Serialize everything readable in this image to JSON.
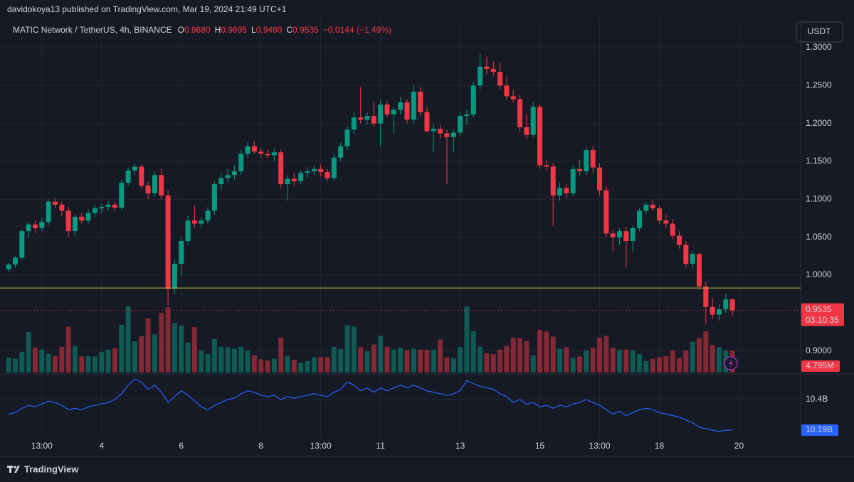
{
  "publisher": "davidokoya13 published on TradingView.com, Mar 19, 2024 21:49 UTC+1",
  "currency_button": "USDT",
  "footer": {
    "brand": "TradingView"
  },
  "chart_data": [
    {
      "type": "candlestick",
      "title": "MATIC Network / TetherUS, 4h, BINANCE",
      "legend_ohlc": [
        {
          "key": "O",
          "value": "0.9680"
        },
        {
          "key": "H",
          "value": "0.9695"
        },
        {
          "key": "L",
          "value": "0.9460"
        },
        {
          "key": "C",
          "value": "0.9535"
        }
      ],
      "change": "−0.0144 (−1.49%)",
      "countdown": "03:10:35",
      "up_color": "#089981",
      "down_color": "#f23645",
      "hline": 0.983,
      "hline_color": "#c9b53c",
      "grid": true,
      "ylim": [
        0.8716,
        1.3366
      ],
      "yticks": [
        {
          "value": 0.9,
          "label": "0.9000"
        },
        {
          "value": 1.0,
          "label": "1.0000"
        },
        {
          "value": 1.05,
          "label": "1.0500"
        },
        {
          "value": 1.1,
          "label": "1.1000"
        },
        {
          "value": 1.15,
          "label": "1.1500"
        },
        {
          "value": 1.2,
          "label": "1.2000"
        },
        {
          "value": 1.25,
          "label": "1.2500"
        },
        {
          "value": 1.3,
          "label": "1.3000"
        }
      ],
      "categories": [
        null,
        null,
        null,
        null,
        null,
        "13:00",
        null,
        null,
        null,
        null,
        null,
        null,
        null,
        null,
        "4",
        null,
        null,
        null,
        null,
        null,
        null,
        null,
        null,
        null,
        null,
        null,
        "6",
        null,
        null,
        null,
        null,
        null,
        null,
        null,
        null,
        null,
        null,
        null,
        "8",
        null,
        null,
        null,
        null,
        null,
        null,
        null,
        null,
        "13:00",
        null,
        null,
        null,
        null,
        null,
        null,
        null,
        null,
        "11",
        null,
        null,
        null,
        null,
        null,
        null,
        null,
        null,
        null,
        null,
        null,
        "13",
        null,
        null,
        null,
        null,
        null,
        null,
        null,
        null,
        null,
        null,
        null,
        "15",
        null,
        null,
        null,
        null,
        null,
        null,
        null,
        null,
        "13:00",
        null,
        null,
        null,
        null,
        null,
        null,
        null,
        null,
        "18",
        null,
        null,
        null,
        null,
        null,
        null,
        null,
        null,
        null,
        null,
        null,
        "20"
      ],
      "open": [
        1.008,
        1.014,
        1.023,
        1.058,
        1.067,
        1.062,
        1.07,
        1.097,
        1.093,
        1.085,
        1.058,
        1.077,
        1.072,
        1.082,
        1.088,
        1.09,
        1.093,
        1.089,
        1.122,
        1.138,
        1.143,
        1.118,
        1.108,
        1.132,
        1.105,
        0.982,
        1.015,
        1.045,
        1.072,
        1.068,
        1.072,
        1.085,
        1.12,
        1.128,
        1.132,
        1.137,
        1.16,
        1.17,
        1.163,
        1.16,
        1.158,
        1.162,
        1.12,
        1.127,
        1.124,
        1.135,
        1.137,
        1.14,
        1.136,
        1.128,
        1.155,
        1.17,
        1.192,
        1.208,
        1.205,
        1.21,
        1.2,
        1.225,
        1.212,
        1.218,
        1.228,
        1.205,
        1.242,
        1.215,
        1.19,
        1.193,
        1.187,
        1.182,
        1.188,
        1.21,
        1.212,
        1.25,
        1.275,
        1.272,
        1.268,
        1.25,
        1.236,
        1.232,
        1.195,
        1.185,
        1.222,
        1.145,
        1.143,
        1.105,
        1.115,
        1.108,
        1.14,
        1.137,
        1.165,
        1.142,
        1.112,
        1.055,
        1.05,
        1.058,
        1.045,
        1.062,
        1.085,
        1.093,
        1.088,
        1.072,
        1.068,
        1.052,
        1.04,
        1.015,
        1.028,
        0.985,
        0.958,
        0.948,
        0.955,
        0.968,
        null
      ],
      "high": [
        1.016,
        1.025,
        1.06,
        1.07,
        1.072,
        1.075,
        1.1,
        1.102,
        1.097,
        1.09,
        1.08,
        1.082,
        1.086,
        1.092,
        1.094,
        1.098,
        1.096,
        1.126,
        1.142,
        1.148,
        1.146,
        1.124,
        1.137,
        1.141,
        1.112,
        1.02,
        1.05,
        1.078,
        1.092,
        1.076,
        1.09,
        1.124,
        1.135,
        1.14,
        1.145,
        1.165,
        1.175,
        1.177,
        1.168,
        1.166,
        1.167,
        1.165,
        1.132,
        1.134,
        1.138,
        1.142,
        1.144,
        1.146,
        1.14,
        1.16,
        1.175,
        1.196,
        1.215,
        1.248,
        1.215,
        1.228,
        1.232,
        1.23,
        1.222,
        1.235,
        1.232,
        1.25,
        1.248,
        1.222,
        1.2,
        1.198,
        1.192,
        1.192,
        1.214,
        1.218,
        1.255,
        1.292,
        1.288,
        1.282,
        1.28,
        1.262,
        1.245,
        1.238,
        1.212,
        1.228,
        1.226,
        1.152,
        1.148,
        1.122,
        1.12,
        1.145,
        1.152,
        1.168,
        1.17,
        1.148,
        1.118,
        1.06,
        1.062,
        1.064,
        1.065,
        1.088,
        1.096,
        1.1,
        1.092,
        1.08,
        1.074,
        1.058,
        1.045,
        1.032,
        1.03,
        0.992,
        0.97,
        0.962,
        0.975,
        0.9695,
        null
      ],
      "low": [
        1.004,
        1.01,
        1.02,
        1.05,
        1.055,
        1.058,
        1.066,
        1.088,
        1.078,
        1.05,
        1.052,
        1.068,
        1.068,
        1.076,
        1.082,
        1.085,
        1.084,
        1.086,
        1.118,
        1.132,
        1.114,
        1.1,
        1.104,
        1.1,
        0.96,
        0.975,
        1.0,
        1.04,
        1.062,
        1.062,
        1.068,
        1.08,
        1.112,
        1.122,
        1.126,
        1.132,
        1.155,
        1.16,
        1.155,
        1.154,
        1.15,
        1.115,
        1.098,
        1.118,
        1.12,
        1.128,
        1.132,
        1.13,
        1.124,
        1.124,
        1.15,
        1.165,
        1.186,
        1.2,
        1.198,
        1.196,
        1.17,
        1.208,
        1.186,
        1.212,
        1.2,
        1.2,
        1.21,
        1.188,
        1.162,
        1.18,
        1.12,
        1.162,
        1.184,
        1.198,
        1.208,
        1.245,
        1.265,
        1.262,
        1.245,
        1.232,
        1.228,
        1.19,
        1.18,
        1.182,
        1.14,
        1.138,
        1.065,
        1.098,
        1.1,
        1.104,
        1.132,
        1.132,
        1.135,
        1.105,
        1.05,
        1.032,
        1.04,
        1.01,
        1.03,
        1.058,
        1.08,
        1.085,
        1.068,
        1.062,
        1.048,
        1.035,
        1.01,
        1.008,
        0.98,
        0.935,
        0.942,
        0.94,
        0.95,
        0.946,
        null
      ],
      "close": [
        1.014,
        1.023,
        1.058,
        1.067,
        1.062,
        1.07,
        1.097,
        1.093,
        1.085,
        1.058,
        1.077,
        1.072,
        1.082,
        1.088,
        1.09,
        1.093,
        1.089,
        1.122,
        1.138,
        1.143,
        1.118,
        1.108,
        1.132,
        1.105,
        0.982,
        1.015,
        1.045,
        1.072,
        1.068,
        1.072,
        1.085,
        1.12,
        1.128,
        1.132,
        1.137,
        1.16,
        1.17,
        1.163,
        1.16,
        1.158,
        1.162,
        1.12,
        1.127,
        1.124,
        1.135,
        1.137,
        1.14,
        1.136,
        1.128,
        1.155,
        1.17,
        1.192,
        1.208,
        1.205,
        1.21,
        1.2,
        1.225,
        1.212,
        1.218,
        1.228,
        1.205,
        1.242,
        1.215,
        1.19,
        1.193,
        1.187,
        1.182,
        1.188,
        1.21,
        1.212,
        1.25,
        1.275,
        1.272,
        1.268,
        1.25,
        1.236,
        1.232,
        1.195,
        1.185,
        1.222,
        1.145,
        1.143,
        1.105,
        1.115,
        1.108,
        1.14,
        1.137,
        1.165,
        1.142,
        1.112,
        1.055,
        1.05,
        1.058,
        1.045,
        1.062,
        1.085,
        1.093,
        1.088,
        1.072,
        1.068,
        1.052,
        1.04,
        1.015,
        1.028,
        0.985,
        0.958,
        0.948,
        0.955,
        0.968,
        0.9535,
        null
      ],
      "volume_lim": [
        0,
        14.4
      ],
      "volume": [
        3.2,
        3.0,
        4.5,
        8.8,
        5.4,
        5.0,
        4.1,
        3.6,
        5.6,
        10.0,
        5.8,
        3.5,
        3.6,
        3.5,
        4.5,
        5.0,
        5.3,
        10.4,
        14.4,
        6.8,
        7.9,
        11.8,
        8.3,
        13.0,
        14.2,
        10.8,
        10.2,
        6.5,
        9.9,
        4.8,
        4.0,
        7.3,
        5.6,
        5.5,
        5.2,
        5.6,
        4.8,
        3.8,
        2.9,
        2.6,
        3.0,
        7.6,
        3.6,
        2.8,
        2.1,
        2.5,
        3.3,
        3.4,
        3.4,
        5.6,
        5.1,
        10.3,
        10.0,
        5.5,
        4.6,
        6.1,
        8.0,
        5.6,
        5.0,
        5.4,
        4.9,
        5.2,
        5.0,
        4.9,
        5.0,
        7.2,
        3.3,
        3.1,
        5.5,
        14.4,
        9.0,
        5.6,
        4.2,
        4.0,
        5.0,
        5.8,
        7.6,
        7.5,
        6.9,
        3.7,
        9.3,
        8.9,
        7.8,
        5.2,
        5.5,
        3.2,
        3.5,
        4.8,
        5.4,
        7.6,
        8.0,
        5.4,
        4.9,
        5.0,
        4.9,
        4.0,
        2.5,
        3.0,
        3.3,
        3.6,
        4.8,
        3.2,
        4.8,
        6.7,
        7.5,
        9.0,
        6.0,
        5.5,
        4.8,
        4.795,
        null
      ],
      "volume_value_labels": [
        null,
        null,
        null,
        null,
        null,
        null,
        null,
        null,
        null,
        null,
        null,
        null,
        null,
        null,
        null,
        null,
        null,
        null,
        null,
        null,
        null,
        null,
        null,
        null,
        null,
        null,
        null,
        null,
        null,
        null,
        null,
        null,
        null,
        null,
        null,
        null,
        null,
        null,
        null,
        null,
        null,
        null,
        null,
        null,
        null,
        null,
        null,
        null,
        null,
        null,
        null,
        null,
        null,
        null,
        null,
        null,
        null,
        null,
        null,
        null,
        null,
        null,
        null,
        null,
        null,
        null,
        null,
        null,
        null,
        null,
        null,
        null,
        null,
        null,
        null,
        null,
        null,
        null,
        null,
        null,
        null,
        null,
        null,
        null,
        null,
        null,
        null,
        null,
        null,
        null,
        null,
        null,
        null,
        null,
        null,
        null,
        null,
        null,
        null,
        null,
        null,
        null,
        null,
        null,
        null,
        null,
        null,
        null,
        null,
        "4.795M",
        null
      ]
    },
    {
      "type": "line",
      "color": "#2962ff",
      "ylim": [
        10.146,
        10.576
      ],
      "yticks": [
        {
          "value": 10.4,
          "label": "10.4B"
        }
      ],
      "values": [
        10.3,
        10.31,
        10.34,
        10.36,
        10.35,
        10.37,
        10.39,
        10.38,
        10.36,
        10.33,
        10.34,
        10.33,
        10.35,
        10.36,
        10.37,
        10.38,
        10.4,
        10.44,
        10.5,
        10.54,
        10.52,
        10.47,
        10.5,
        10.45,
        10.38,
        10.42,
        10.46,
        10.43,
        10.39,
        10.35,
        10.33,
        10.36,
        10.38,
        10.4,
        10.41,
        10.44,
        10.46,
        10.45,
        10.43,
        10.42,
        10.43,
        10.4,
        10.42,
        10.41,
        10.42,
        10.43,
        10.44,
        10.43,
        10.42,
        10.45,
        10.47,
        10.52,
        10.5,
        10.46,
        10.48,
        10.45,
        10.48,
        10.46,
        10.48,
        10.5,
        10.48,
        10.5,
        10.48,
        10.46,
        10.45,
        10.44,
        10.43,
        10.44,
        10.46,
        10.53,
        10.51,
        10.49,
        10.48,
        10.47,
        10.44,
        10.42,
        10.38,
        10.4,
        10.37,
        10.38,
        10.35,
        10.36,
        10.34,
        10.36,
        10.35,
        10.37,
        10.38,
        10.4,
        10.38,
        10.36,
        10.33,
        10.3,
        10.32,
        10.29,
        10.31,
        10.33,
        10.34,
        10.33,
        10.31,
        10.3,
        10.29,
        10.28,
        10.26,
        10.24,
        10.21,
        10.2,
        10.19,
        10.18,
        10.19,
        10.19,
        null
      ],
      "value_labels": [
        null,
        null,
        null,
        null,
        null,
        null,
        null,
        null,
        null,
        null,
        null,
        null,
        null,
        null,
        null,
        null,
        null,
        null,
        null,
        null,
        null,
        null,
        null,
        null,
        null,
        null,
        null,
        null,
        null,
        null,
        null,
        null,
        null,
        null,
        null,
        null,
        null,
        null,
        null,
        null,
        null,
        null,
        null,
        null,
        null,
        null,
        null,
        null,
        null,
        null,
        null,
        null,
        null,
        null,
        null,
        null,
        null,
        null,
        null,
        null,
        null,
        null,
        null,
        null,
        null,
        null,
        null,
        null,
        null,
        null,
        null,
        null,
        null,
        null,
        null,
        null,
        null,
        null,
        null,
        null,
        null,
        null,
        null,
        null,
        null,
        null,
        null,
        null,
        null,
        null,
        null,
        null,
        null,
        null,
        null,
        null,
        null,
        null,
        null,
        null,
        null,
        null,
        null,
        null,
        null,
        null,
        null,
        null,
        null,
        "10.19B",
        null
      ]
    }
  ]
}
